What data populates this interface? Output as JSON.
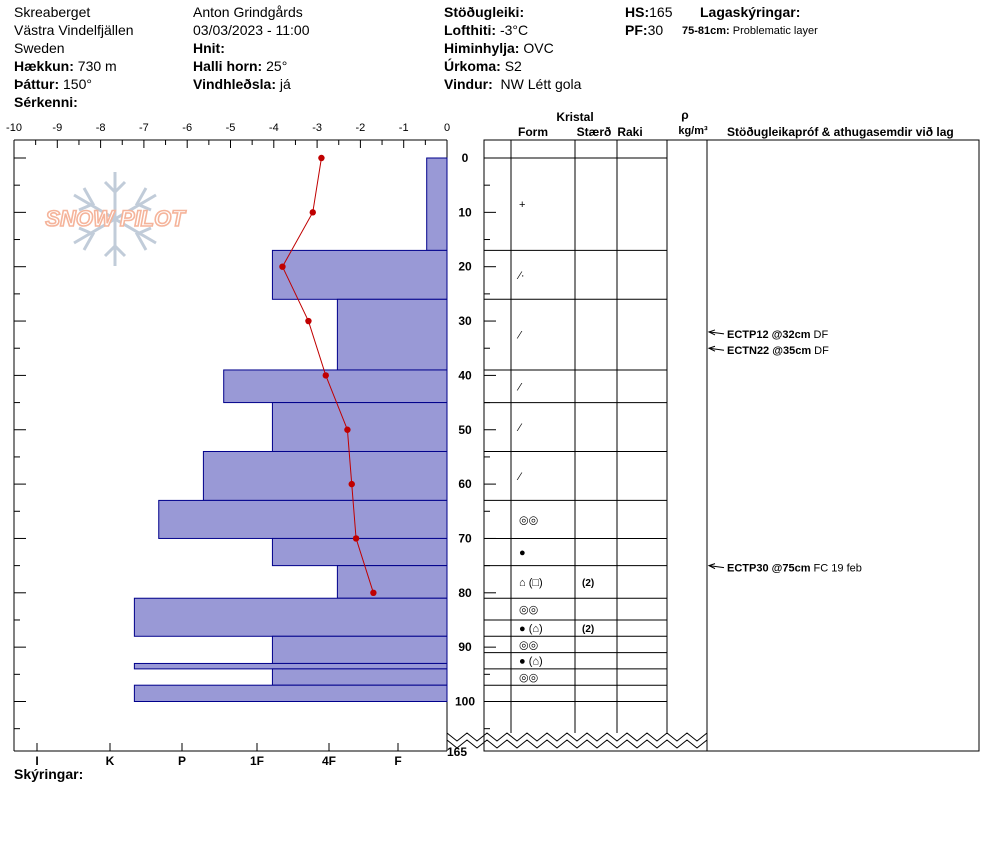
{
  "header": {
    "location": "Skreaberget",
    "area": "Västra Vindelfjällen",
    "country": "Sweden",
    "elevation_label": "Hækkun:",
    "elevation": "730 m",
    "aspect_label": "Þáttur:",
    "aspect": "150°",
    "special_label": "Sérkenni:",
    "observer": "Anton Grindgårds",
    "datetime": "03/03/2023 - 11:00",
    "coords_label": "Hnit:",
    "slope_label": "Halli horn:",
    "slope": "25°",
    "wind_loading_label": "Vindhleðsla:",
    "wind_loading": "já",
    "stability_label": "Stöðugleiki:",
    "air_temp_label": "Lofthiti:",
    "air_temp": "-3°C",
    "sky_label": "Himinhylja:",
    "sky": "OVC",
    "precip_label": "Úrkoma:",
    "precip": "S2",
    "wind_label": "Vindur:",
    "wind": "NW Létt gola",
    "hs_label": "HS:",
    "hs": "165",
    "pf_label": "PF:",
    "pf": "30",
    "layers_label": "Lagaskýringar:",
    "problem_layer_range": "75-81cm:",
    "problem_layer_text": "Problematic layer",
    "footer_label": "Skýringar:"
  },
  "logo_text": "SNOW PILOT",
  "colors": {
    "layer_fill": "#9999d6",
    "layer_stroke": "#00008b",
    "temp_line": "#c00000"
  },
  "table": {
    "crystal_header": "Kristal",
    "form_header": "Form",
    "size_header": "Stærð",
    "moisture_header": "Raki",
    "density_symbol": "ρ",
    "density_unit": "kg/m³",
    "comments_header": "Stöðugleikapróf & athugasemdir við lag"
  },
  "chart_data": {
    "type": "snow-profile",
    "temp_axis": {
      "ticks": [
        "-10",
        "-9",
        "-8",
        "-7",
        "-6",
        "-5",
        "-4",
        "-3",
        "-2",
        "-1",
        "0"
      ],
      "range": [
        -10,
        0
      ]
    },
    "hardness_axis": {
      "ticks": [
        "I",
        "K",
        "P",
        "1F",
        "4F",
        "F"
      ]
    },
    "depth_axis": {
      "ticks": [
        "0",
        "10",
        "20",
        "30",
        "40",
        "50",
        "60",
        "70",
        "80",
        "90",
        "100"
      ],
      "range": [
        0,
        165
      ],
      "break_label": "165"
    },
    "hardness_layers": [
      {
        "top": 0,
        "bottom": 17,
        "hardness_index": 0.5
      },
      {
        "top": 17,
        "bottom": 26,
        "hardness_index": 4.3
      },
      {
        "top": 26,
        "bottom": 39,
        "hardness_index": 2.7
      },
      {
        "top": 39,
        "bottom": 45,
        "hardness_index": 5.5
      },
      {
        "top": 45,
        "bottom": 54,
        "hardness_index": 4.3
      },
      {
        "top": 54,
        "bottom": 63,
        "hardness_index": 6.0
      },
      {
        "top": 63,
        "bottom": 70,
        "hardness_index": 7.1
      },
      {
        "top": 70,
        "bottom": 75,
        "hardness_index": 4.3
      },
      {
        "top": 75,
        "bottom": 81,
        "hardness_index": 2.7
      },
      {
        "top": 81,
        "bottom": 88,
        "hardness_index": 7.7
      },
      {
        "top": 88,
        "bottom": 93,
        "hardness_index": 4.3
      },
      {
        "top": 93,
        "bottom": 94,
        "hardness_index": 7.7
      },
      {
        "top": 94,
        "bottom": 97,
        "hardness_index": 4.3
      },
      {
        "top": 97,
        "bottom": 100,
        "hardness_index": 7.7
      }
    ],
    "temperature_profile": [
      {
        "depth": 0,
        "temp": -2.9
      },
      {
        "depth": 10,
        "temp": -3.1
      },
      {
        "depth": 20,
        "temp": -3.8
      },
      {
        "depth": 30,
        "temp": -3.2
      },
      {
        "depth": 40,
        "temp": -2.8
      },
      {
        "depth": 50,
        "temp": -2.3
      },
      {
        "depth": 60,
        "temp": -2.2
      },
      {
        "depth": 70,
        "temp": -2.1
      },
      {
        "depth": 80,
        "temp": -1.7
      }
    ],
    "layer_boundaries": [
      0,
      17,
      26,
      39,
      45,
      54,
      63,
      70,
      75,
      81,
      85,
      88,
      91,
      94,
      97,
      100
    ],
    "layer_forms": [
      {
        "depth": 8.5,
        "symbol": "+",
        "size": ""
      },
      {
        "depth": 21.5,
        "symbol": "⁄·",
        "size": ""
      },
      {
        "depth": 32.5,
        "symbol": "⁄",
        "size": ""
      },
      {
        "depth": 42,
        "symbol": "⁄",
        "size": ""
      },
      {
        "depth": 49.5,
        "symbol": "⁄",
        "size": ""
      },
      {
        "depth": 58.5,
        "symbol": "⁄",
        "size": ""
      },
      {
        "depth": 66.5,
        "symbol": "◎◎",
        "size": ""
      },
      {
        "depth": 72.5,
        "symbol": "●",
        "size": ""
      },
      {
        "depth": 78,
        "symbol": "⌂ (□)",
        "size": "(2)"
      },
      {
        "depth": 83,
        "symbol": "◎◎",
        "size": ""
      },
      {
        "depth": 86.5,
        "symbol": "● (⌂)",
        "size": "(2)"
      },
      {
        "depth": 89.5,
        "symbol": "◎◎",
        "size": ""
      },
      {
        "depth": 92.5,
        "symbol": "● (⌂)",
        "size": ""
      },
      {
        "depth": 95.5,
        "symbol": "◎◎",
        "size": ""
      }
    ],
    "stability_tests": [
      {
        "depth": 32,
        "label": "ECTP12 @32cm",
        "note": "DF"
      },
      {
        "depth": 35,
        "label": "ECTN22 @35cm",
        "note": "DF"
      },
      {
        "depth": 75,
        "label": "ECTP30 @75cm",
        "note": "FC 19 feb"
      }
    ]
  }
}
